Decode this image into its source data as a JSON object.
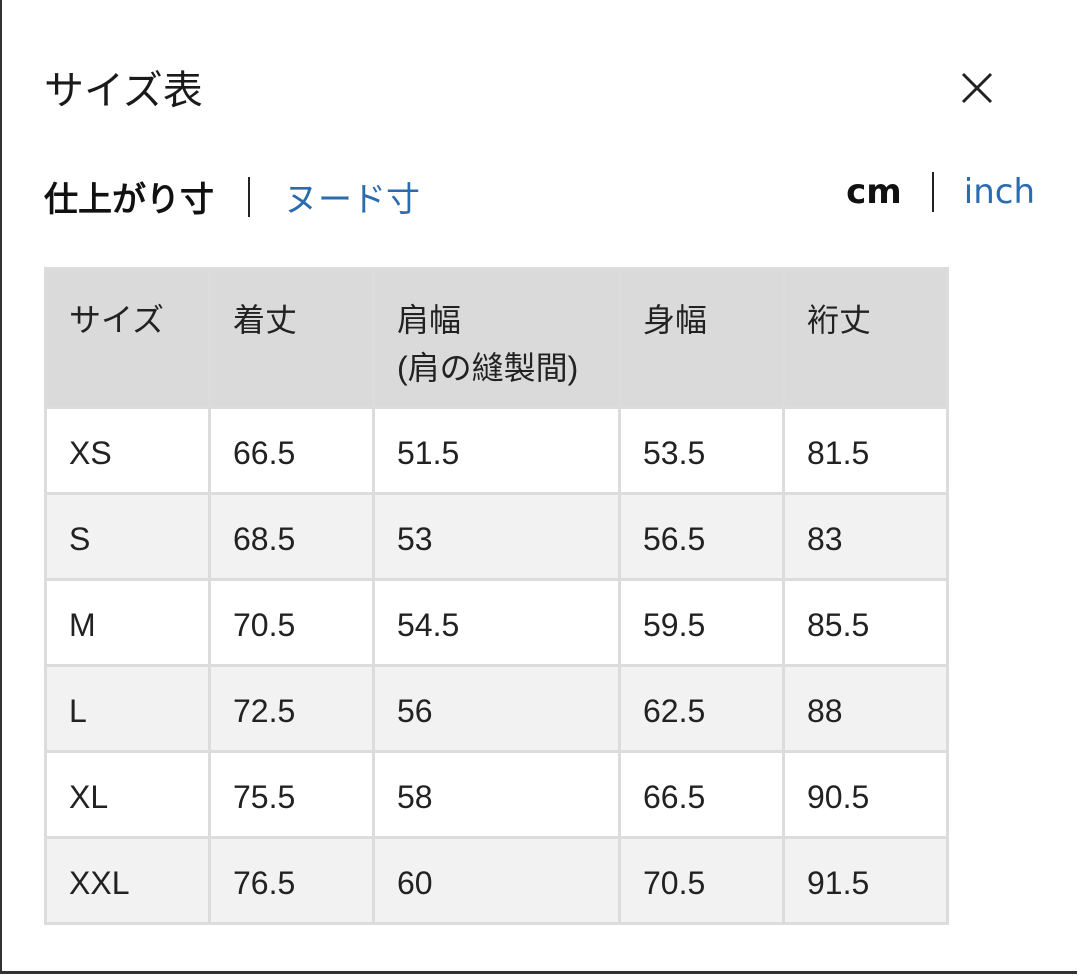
{
  "title": "サイズ表",
  "close_icon": "close-icon",
  "measure_tabs": [
    {
      "label": "仕上がり寸",
      "active": true
    },
    {
      "label": "ヌード寸",
      "active": false
    }
  ],
  "unit_tabs": [
    {
      "label": "cm",
      "active": true
    },
    {
      "label": "inch",
      "active": false
    }
  ],
  "colors": {
    "link": "#2b6cb0",
    "header_bg": "#dadada",
    "alt_row_bg": "#f2f2f2"
  },
  "table": {
    "headers": [
      "サイズ",
      "着丈",
      "肩幅",
      "身幅",
      "裄丈"
    ],
    "header_sub": "(肩の縫製間)",
    "rows": [
      [
        "XS",
        "66.5",
        "51.5",
        "53.5",
        "81.5"
      ],
      [
        "S",
        "68.5",
        "53",
        "56.5",
        "83"
      ],
      [
        "M",
        "70.5",
        "54.5",
        "59.5",
        "85.5"
      ],
      [
        "L",
        "72.5",
        "56",
        "62.5",
        "88"
      ],
      [
        "XL",
        "75.5",
        "58",
        "66.5",
        "90.5"
      ],
      [
        "XXL",
        "76.5",
        "60",
        "70.5",
        "91.5"
      ]
    ]
  }
}
